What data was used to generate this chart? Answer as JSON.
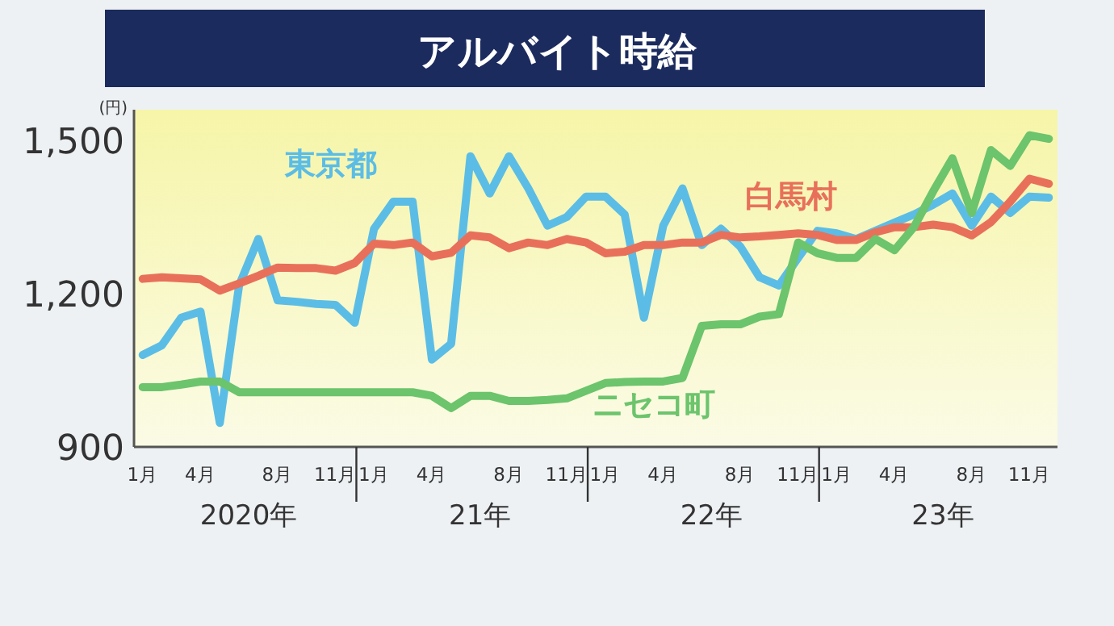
{
  "chart_data": {
    "type": "line",
    "title": "アルバイト時給",
    "ylabel": "(円)",
    "categories": [
      "1月",
      null,
      null,
      "4月",
      null,
      null,
      null,
      "8月",
      null,
      null,
      "11月",
      null,
      "1月",
      null,
      null,
      "4月",
      null,
      null,
      null,
      "8月",
      null,
      null,
      "11月",
      null,
      "1月",
      null,
      null,
      "4月",
      null,
      null,
      null,
      "8月",
      null,
      null,
      "11月",
      null,
      "1月",
      null,
      null,
      "4月",
      null,
      null,
      null,
      "8月",
      null,
      null,
      "11月",
      null
    ],
    "annotations": [
      "2020年",
      "21年",
      "22年",
      "23年"
    ],
    "ylim": [
      900,
      1560
    ],
    "yticks": [
      900,
      {
        "value": 1200,
        "label": "1,200"
      },
      {
        "value": 1500,
        "label": "1,500"
      }
    ],
    "grid": false,
    "legend": false,
    "marker": "none",
    "line_style": "solid",
    "series": [
      {
        "name": "東京都",
        "color": "#5bbde6",
        "values": [
          1080,
          1099,
          1153,
          1165,
          947,
          1216,
          1307,
          1187,
          1184,
          1180,
          1178,
          1143,
          1327,
          1380,
          1380,
          1071,
          1102,
          1469,
          1396,
          1469,
          1406,
          1333,
          1350,
          1390,
          1390,
          1355,
          1153,
          1333,
          1406,
          1295,
          1327,
          1292,
          1232,
          1216,
          1270,
          1323,
          1318,
          1307,
          1323,
          1339,
          1355,
          1374,
          1396,
          1333,
          1390,
          1358,
          1390,
          1388
        ]
      },
      {
        "name": "白馬村",
        "color": "#e8705a",
        "values": [
          1229,
          1232,
          1230,
          1228,
          1206,
          1220,
          1235,
          1251,
          1250,
          1250,
          1245,
          1260,
          1298,
          1295,
          1300,
          1273,
          1280,
          1314,
          1310,
          1289,
          1300,
          1295,
          1307,
          1300,
          1279,
          1282,
          1295,
          1295,
          1300,
          1300,
          1315,
          1310,
          1312,
          1315,
          1318,
          1315,
          1305,
          1305,
          1320,
          1330,
          1330,
          1335,
          1330,
          1314,
          1340,
          1380,
          1425,
          1415
        ]
      },
      {
        "name": "ニセコ町",
        "color": "#6cc46c",
        "values": [
          1017,
          1017,
          1022,
          1028,
          1028,
          1007,
          1007,
          1007,
          1007,
          1007,
          1007,
          1007,
          1007,
          1007,
          1007,
          1000,
          976,
          1000,
          1000,
          990,
          990,
          992,
          995,
          1010,
          1025,
          1027,
          1028,
          1028,
          1035,
          1137,
          1140,
          1140,
          1155,
          1160,
          1300,
          1279,
          1270,
          1270,
          1307,
          1285,
          1330,
          1400,
          1465,
          1358,
          1481,
          1450,
          1510,
          1503
        ]
      }
    ]
  }
}
